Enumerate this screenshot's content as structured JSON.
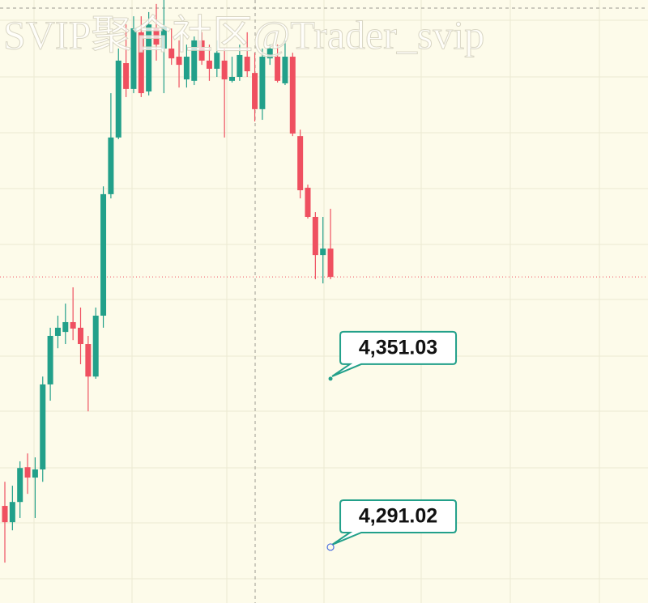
{
  "chart_data": {
    "type": "candlestick",
    "watermark": "SVIP聚合社区@Trader_svip",
    "categories": [
      null,
      null,
      null,
      null,
      null,
      null,
      null,
      null,
      null,
      null,
      null,
      null,
      null,
      null,
      null,
      null,
      null,
      null,
      null,
      null,
      null,
      null,
      null,
      null,
      null,
      null,
      null,
      null,
      null,
      null,
      null,
      null,
      null,
      null,
      null,
      null,
      null,
      null,
      null,
      null,
      null,
      null,
      null,
      null
    ],
    "open": [
      4305.7,
      4299.9,
      4307.1,
      4319.5,
      4315.8,
      4318.7,
      4349.0,
      4366.3,
      4367.7,
      4371.2,
      4369.2,
      4363.4,
      4351.8,
      4373.5,
      4416.8,
      4437.0,
      4463.5,
      4454.3,
      4474.5,
      4453.4,
      4475.9,
      4468.7,
      4468.7,
      4465.8,
      4457.7,
      4457.2,
      4471.6,
      4464.4,
      4461.5,
      4464.4,
      4457.2,
      4458.6,
      4465.8,
      4460.0,
      4447.1,
      4465.2,
      4465.8,
      4456.3,
      4465.8,
      4437.5,
      4419.1,
      4408.7,
      4395.1,
      4397.4
    ],
    "high": [
      4314.3,
      4312.9,
      4321.6,
      4324.4,
      4323.0,
      4351.8,
      4369.2,
      4373.5,
      4377.8,
      4383.6,
      4376.4,
      4366.3,
      4376.4,
      4419.6,
      4452.8,
      4468.7,
      4477.3,
      4480.2,
      4480.2,
      4481.7,
      4484.6,
      4486.0,
      4475.9,
      4471.6,
      4470.1,
      4473.0,
      4474.5,
      4470.1,
      4471.6,
      4468.7,
      4465.8,
      4470.1,
      4474.5,
      4467.2,
      4468.7,
      4470.1,
      4470.1,
      4471.6,
      4467.2,
      4439.8,
      4420.2,
      4410.4,
      4408.7,
      4411.6
    ],
    "low": [
      4285.5,
      4297.0,
      4301.4,
      4310.0,
      4301.4,
      4314.3,
      4343.2,
      4361.9,
      4363.4,
      4364.8,
      4356.2,
      4339.4,
      4351.0,
      4369.2,
      4415.3,
      4436.4,
      4451.4,
      4452.8,
      4451.4,
      4452.0,
      4464.4,
      4452.8,
      4462.9,
      4454.8,
      4454.8,
      4455.7,
      4462.9,
      4457.2,
      4458.6,
      4437.0,
      4456.6,
      4457.2,
      4458.6,
      4442.7,
      4443.3,
      4462.9,
      4456.6,
      4455.7,
      4437.5,
      4415.3,
      4408.1,
      4386.5,
      4385.0,
      4386.5
    ],
    "close": [
      4299.9,
      4307.1,
      4319.2,
      4315.8,
      4318.7,
      4349.0,
      4366.3,
      4369.2,
      4371.2,
      4368.9,
      4363.4,
      4351.8,
      4373.5,
      4416.8,
      4437.0,
      4464.4,
      4454.3,
      4475.9,
      4452.8,
      4477.3,
      4470.1,
      4476.5,
      4465.2,
      4462.9,
      4465.8,
      4471.6,
      4464.4,
      4461.5,
      4467.2,
      4457.7,
      4458.6,
      4466.4,
      4460.6,
      4447.1,
      4465.8,
      4468.7,
      4457.2,
      4465.8,
      4438.4,
      4418.2,
      4408.7,
      4395.1,
      4397.4,
      4387.3
    ],
    "up_color": "#22a08a",
    "down_color": "#ef5060",
    "ylim": [
      4271.1,
      4486.0
    ],
    "markers": [
      {
        "value": 4351.03,
        "label": "4,351.03",
        "filled": true
      },
      {
        "value": 4291.02,
        "label": "4,291.02",
        "filled": false
      }
    ]
  }
}
